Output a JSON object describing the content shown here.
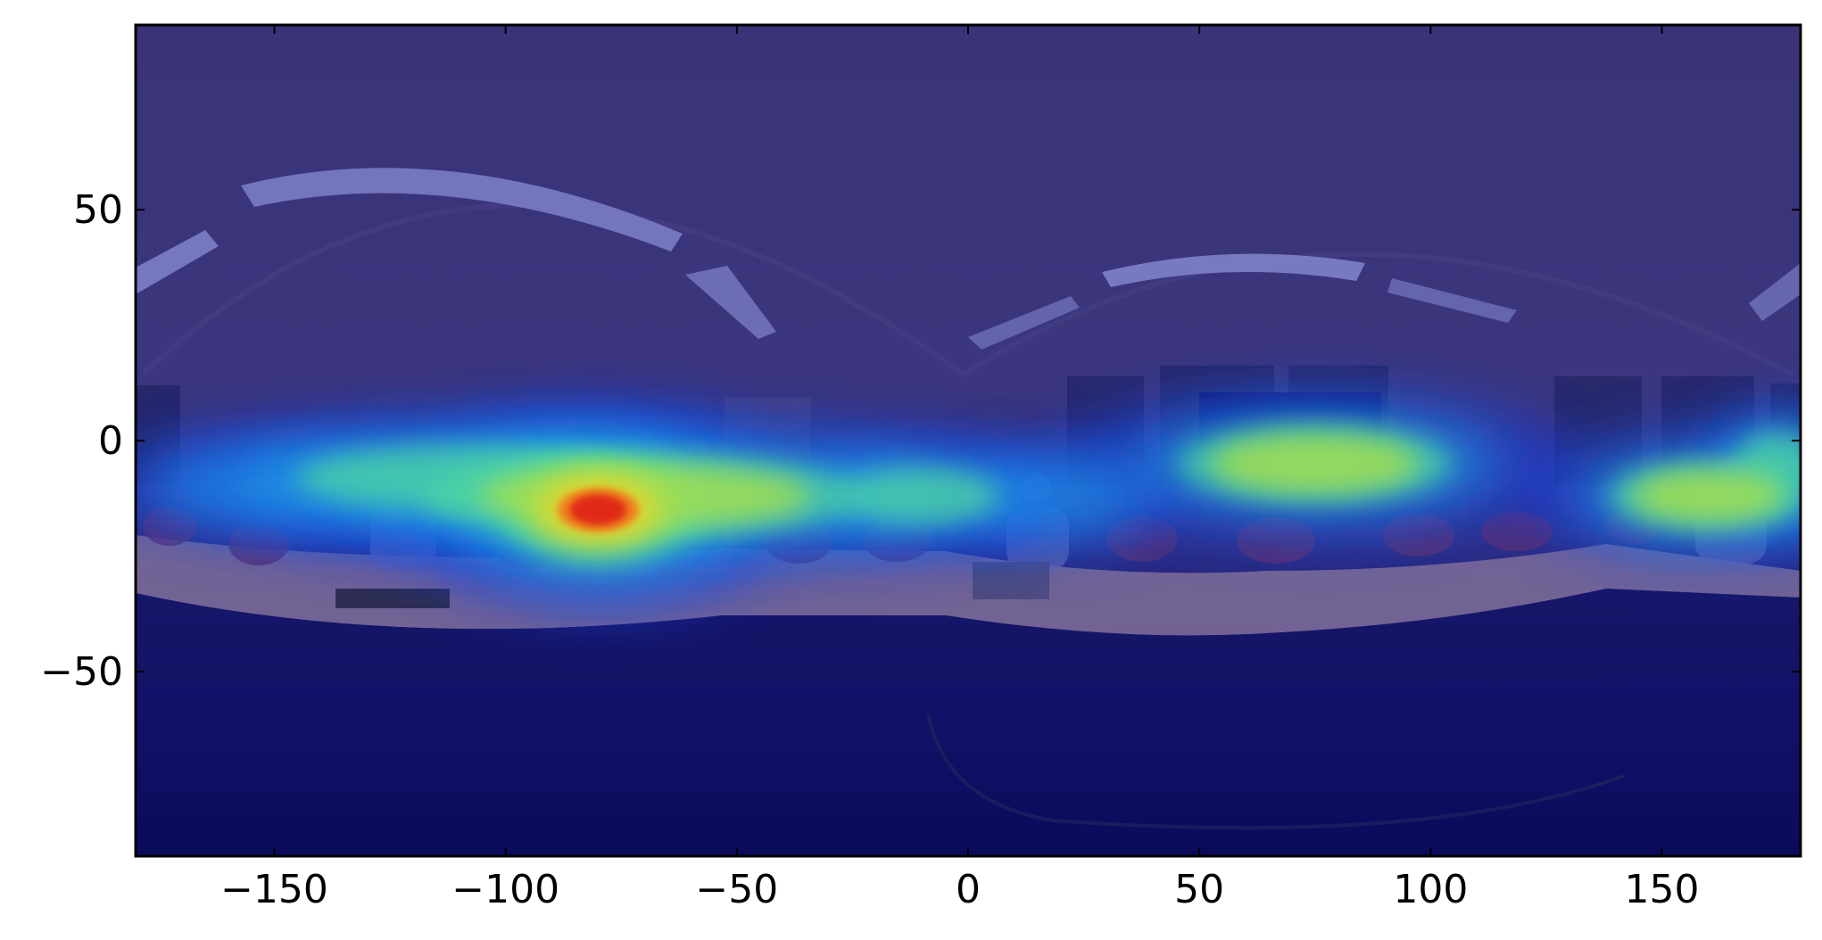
{
  "chart_data": {
    "type": "heatmap",
    "title": "",
    "xlabel": "",
    "ylabel": "",
    "xlim": [
      -180,
      180
    ],
    "ylim": [
      -90,
      90
    ],
    "x_ticks": [
      -150,
      -100,
      -50,
      0,
      50,
      100,
      150
    ],
    "y_ticks": [
      -50,
      0,
      50
    ],
    "x_tick_labels": [
      "−150",
      "−100",
      "−50",
      "0",
      "50",
      "100",
      "150"
    ],
    "y_tick_labels": [
      "−50",
      "0",
      "50"
    ],
    "grid": false,
    "legend": "none",
    "colormap": "jet",
    "background": "equirectangular 360° panorama of a meeting room with curved tables, chairs and seated people",
    "hotspots": [
      {
        "x": -80,
        "y": -15,
        "rx": 22,
        "ry": 12,
        "intensity": 1.0
      },
      {
        "x": -70,
        "y": -12,
        "rx": 58,
        "ry": 11,
        "intensity": 0.55
      },
      {
        "x": -110,
        "y": -8,
        "rx": 45,
        "ry": 9,
        "intensity": 0.45
      },
      {
        "x": -150,
        "y": -10,
        "rx": 28,
        "ry": 8,
        "intensity": 0.32
      },
      {
        "x": -10,
        "y": -12,
        "rx": 22,
        "ry": 8,
        "intensity": 0.42
      },
      {
        "x": 20,
        "y": -12,
        "rx": 18,
        "ry": 8,
        "intensity": 0.38
      },
      {
        "x": 75,
        "y": -5,
        "rx": 35,
        "ry": 10,
        "intensity": 0.62
      },
      {
        "x": 160,
        "y": -12,
        "rx": 26,
        "ry": 9,
        "intensity": 0.58
      },
      {
        "x": 175,
        "y": -5,
        "rx": 12,
        "ry": 9,
        "intensity": 0.4
      }
    ]
  },
  "colors": {
    "overlay_base": "#2e2f84",
    "ceiling": "#3a3478",
    "floor": "#0c0c5e",
    "table": "#7c6a9a",
    "axis": "#000000"
  }
}
